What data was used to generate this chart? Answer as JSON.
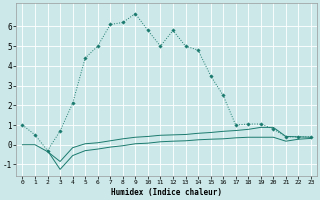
{
  "xlabel": "Humidex (Indice chaleur)",
  "bg_color": "#cce8e8",
  "grid_color": "#ffffff",
  "line_color": "#1a7a6e",
  "xlim": [
    -0.5,
    23.5
  ],
  "ylim": [
    -1.6,
    7.2
  ],
  "xticks": [
    0,
    1,
    2,
    3,
    4,
    5,
    6,
    7,
    8,
    9,
    10,
    11,
    12,
    13,
    14,
    15,
    16,
    17,
    18,
    19,
    20,
    21,
    22,
    23
  ],
  "yticks": [
    -1,
    0,
    1,
    2,
    3,
    4,
    5,
    6
  ],
  "line1_x": [
    0,
    1,
    2,
    3,
    4,
    5,
    6,
    7,
    8,
    9,
    10,
    11,
    12,
    13,
    14,
    15,
    16,
    17,
    18,
    19,
    20,
    21,
    22,
    23
  ],
  "line1_y": [
    1.0,
    0.5,
    -0.3,
    0.7,
    2.1,
    4.4,
    5.0,
    6.1,
    6.2,
    6.65,
    5.8,
    5.0,
    5.8,
    5.0,
    4.8,
    3.5,
    2.5,
    1.0,
    1.05,
    1.05,
    0.8,
    0.4,
    0.4,
    0.4
  ],
  "line2_x": [
    0,
    1,
    2,
    3,
    4,
    5,
    6,
    7,
    8,
    9,
    10,
    11,
    12,
    13,
    14,
    15,
    16,
    17,
    18,
    19,
    20,
    21,
    22,
    23
  ],
  "line2_y": [
    0.0,
    0.0,
    -0.35,
    -0.85,
    -0.15,
    0.05,
    0.1,
    0.2,
    0.3,
    0.38,
    0.42,
    0.48,
    0.5,
    0.52,
    0.58,
    0.62,
    0.68,
    0.72,
    0.78,
    0.88,
    0.88,
    0.42,
    0.4,
    0.38
  ],
  "line3_x": [
    2,
    3,
    4,
    5,
    6,
    7,
    8,
    9,
    10,
    11,
    12,
    13,
    14,
    15,
    16,
    17,
    18,
    19,
    20,
    21,
    22,
    23
  ],
  "line3_y": [
    -0.3,
    -1.25,
    -0.55,
    -0.3,
    -0.22,
    -0.12,
    -0.05,
    0.05,
    0.08,
    0.15,
    0.18,
    0.2,
    0.25,
    0.28,
    0.3,
    0.35,
    0.38,
    0.38,
    0.38,
    0.18,
    0.28,
    0.32
  ]
}
